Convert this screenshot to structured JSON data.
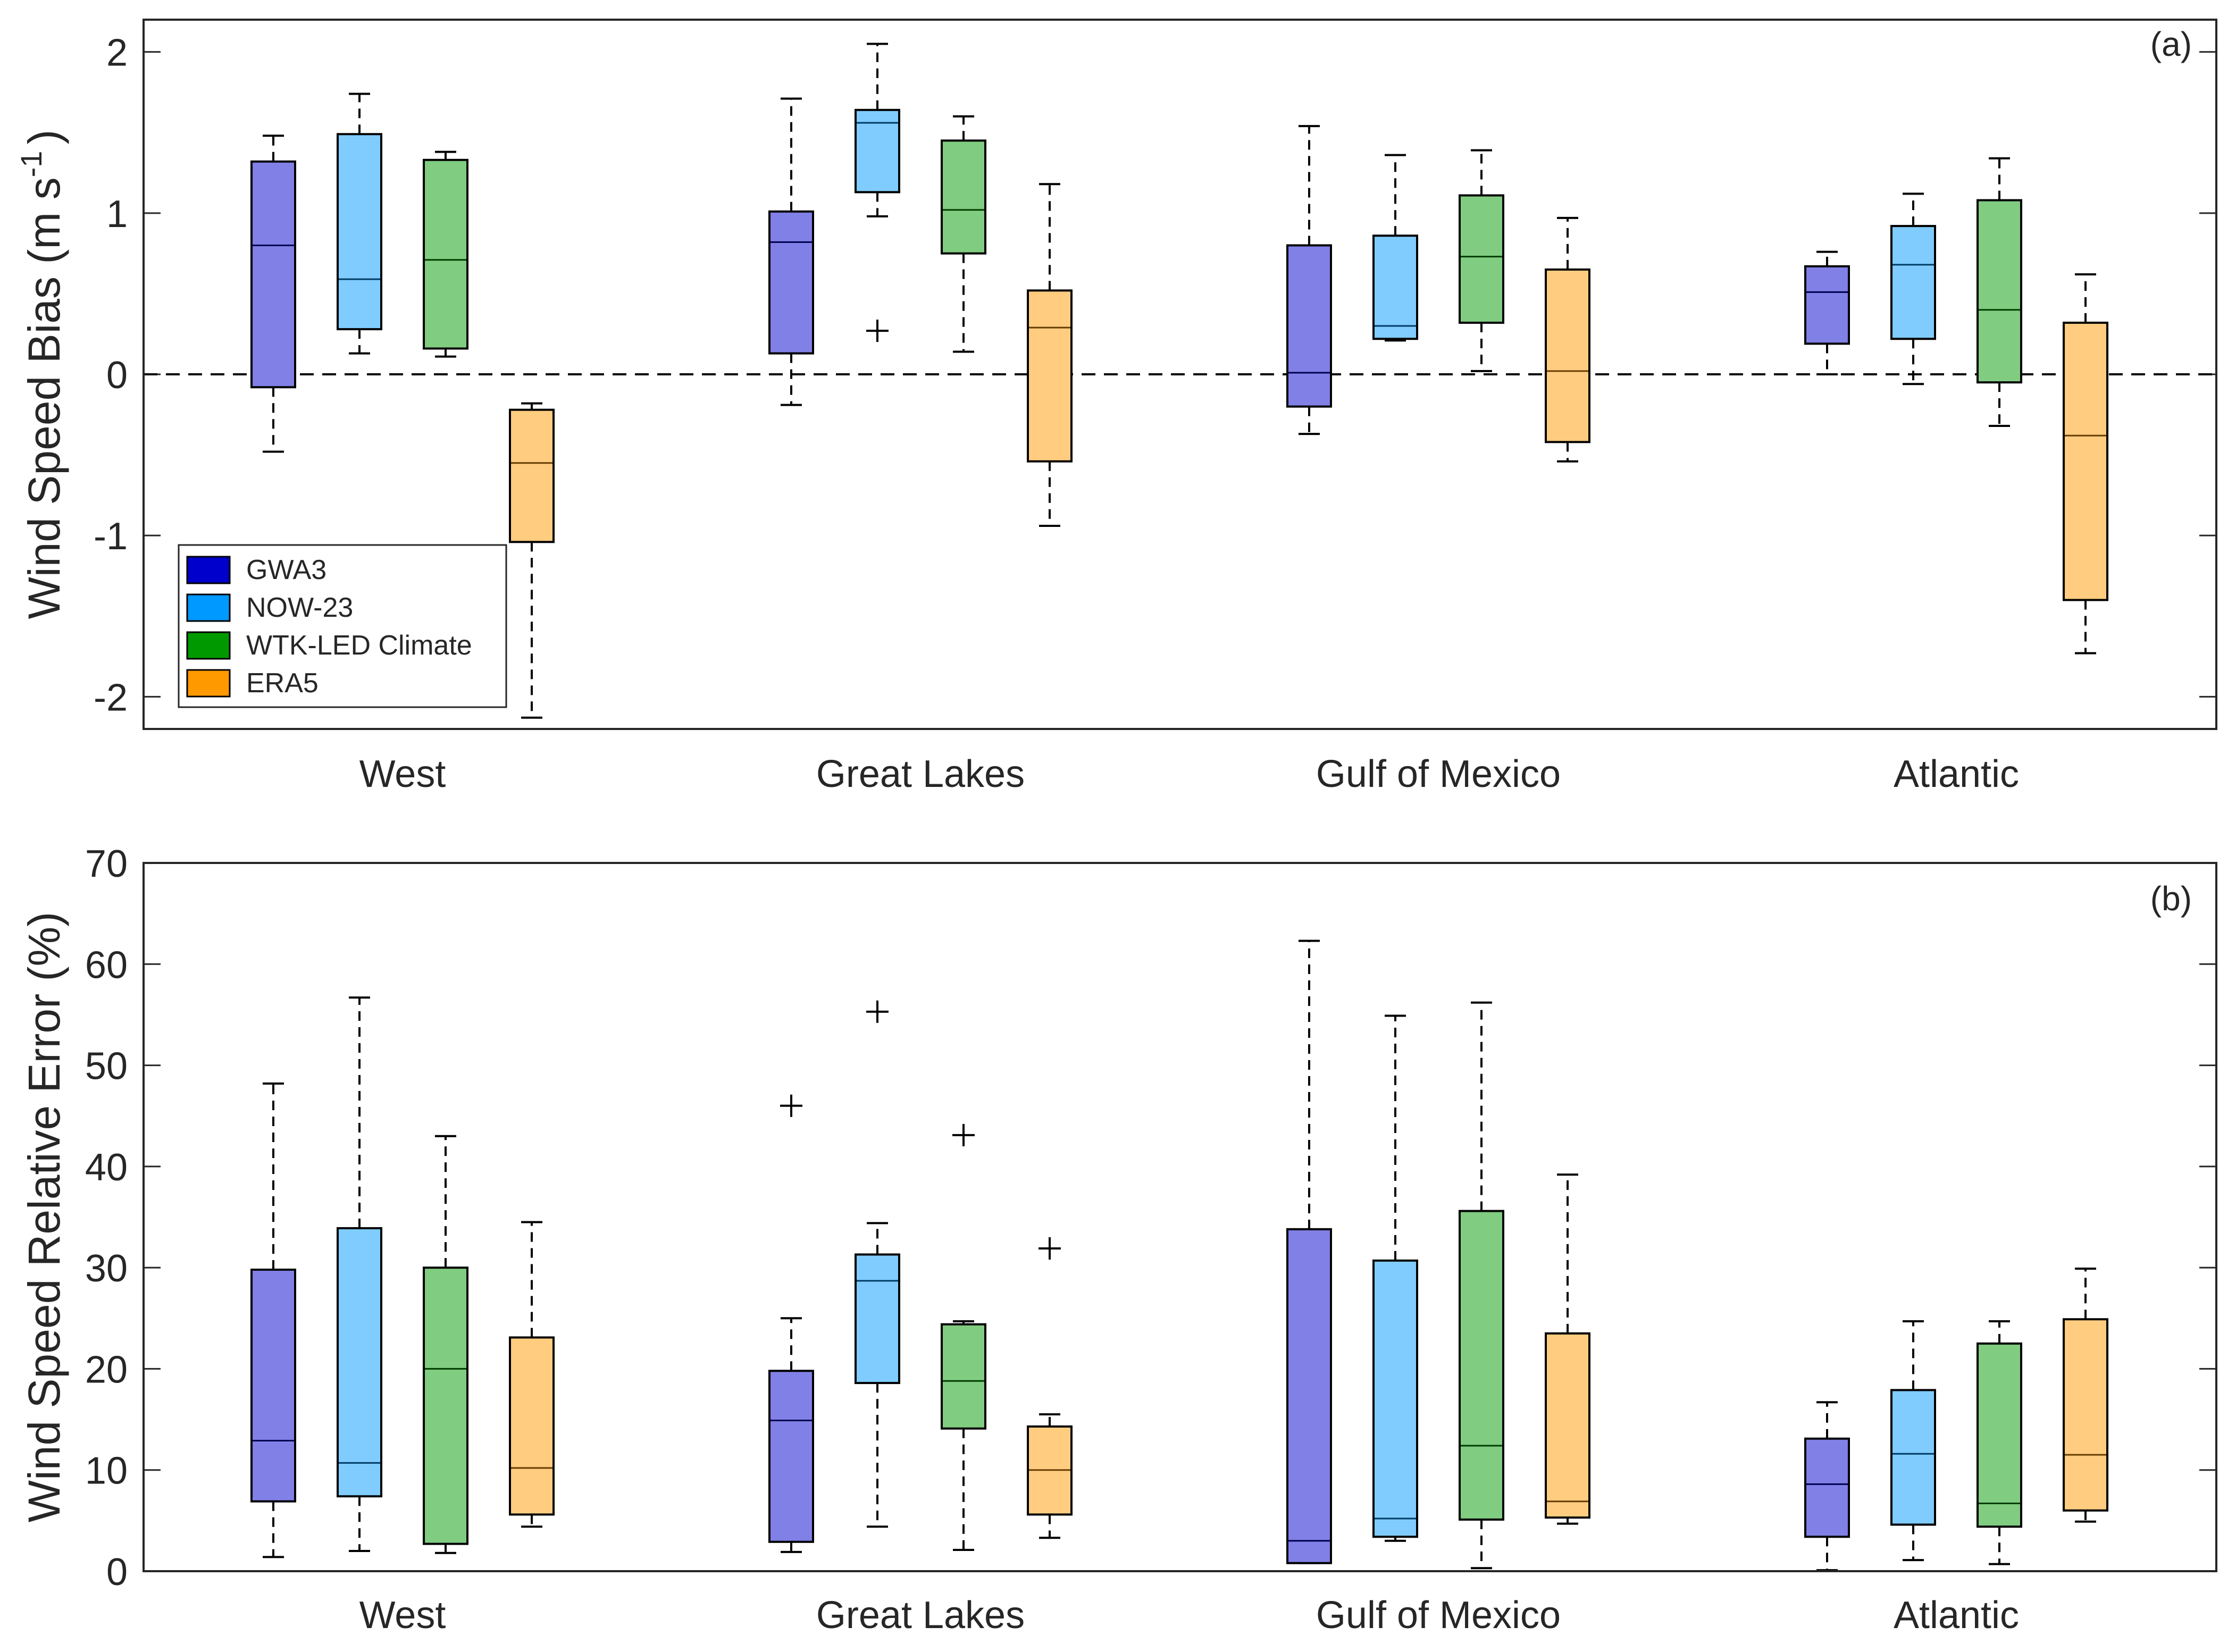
{
  "series_colors": {
    "GWA3": "#0000CC",
    "NOW-23": "#0099FF",
    "WTK-LED Climate": "#009900",
    "ERA5": "#FF9900"
  },
  "legend": [
    "GWA3",
    "NOW-23",
    "WTK-LED Climate",
    "ERA5"
  ],
  "chart_data": [
    {
      "type": "box",
      "panel_label": "(a)",
      "title": "",
      "ylabel": "Wind Speed Bias (m s^-1)",
      "ylabel_main": "Wind Speed Bias (m s",
      "ylabel_sup": "-1",
      "ylabel_end": ")",
      "xlabel": "",
      "ylim": [
        -2.2,
        2.2
      ],
      "yticks": [
        -2,
        -1,
        0,
        1,
        2
      ],
      "ytick_labels": [
        "-2",
        "-1",
        "0",
        "1",
        "2"
      ],
      "reference_line": 0,
      "legend_position": "bottom-left",
      "categories": [
        "West",
        "Great Lakes",
        "Gulf of Mexico",
        "Atlantic"
      ],
      "series": [
        {
          "name": "GWA3",
          "boxes": [
            {
              "whisker_low": -0.48,
              "q1": -0.08,
              "median": 0.8,
              "q3": 1.32,
              "whisker_high": 1.48,
              "outliers": []
            },
            {
              "whisker_low": -0.19,
              "q1": 0.13,
              "median": 0.82,
              "q3": 1.01,
              "whisker_high": 1.71,
              "outliers": []
            },
            {
              "whisker_low": -0.37,
              "q1": -0.2,
              "median": 0.01,
              "q3": 0.8,
              "whisker_high": 1.54,
              "outliers": []
            },
            {
              "whisker_low": 0.0,
              "q1": 0.19,
              "median": 0.51,
              "q3": 0.67,
              "whisker_high": 0.76,
              "outliers": []
            }
          ]
        },
        {
          "name": "NOW-23",
          "boxes": [
            {
              "whisker_low": 0.13,
              "q1": 0.28,
              "median": 0.59,
              "q3": 1.49,
              "whisker_high": 1.74,
              "outliers": []
            },
            {
              "whisker_low": 0.98,
              "q1": 1.13,
              "median": 1.56,
              "q3": 1.64,
              "whisker_high": 2.05,
              "outliers": [
                0.27
              ]
            },
            {
              "whisker_low": 0.21,
              "q1": 0.22,
              "median": 0.3,
              "q3": 0.86,
              "whisker_high": 1.36,
              "outliers": []
            },
            {
              "whisker_low": -0.06,
              "q1": 0.22,
              "median": 0.68,
              "q3": 0.92,
              "whisker_high": 1.12,
              "outliers": []
            }
          ]
        },
        {
          "name": "WTK-LED Climate",
          "boxes": [
            {
              "whisker_low": 0.11,
              "q1": 0.16,
              "median": 0.71,
              "q3": 1.33,
              "whisker_high": 1.38,
              "outliers": []
            },
            {
              "whisker_low": 0.14,
              "q1": 0.75,
              "median": 1.02,
              "q3": 1.45,
              "whisker_high": 1.6,
              "outliers": []
            },
            {
              "whisker_low": 0.02,
              "q1": 0.32,
              "median": 0.73,
              "q3": 1.11,
              "whisker_high": 1.39,
              "outliers": []
            },
            {
              "whisker_low": -0.32,
              "q1": -0.05,
              "median": 0.4,
              "q3": 1.08,
              "whisker_high": 1.34,
              "outliers": []
            }
          ]
        },
        {
          "name": "ERA5",
          "boxes": [
            {
              "whisker_low": -2.13,
              "q1": -1.04,
              "median": -0.55,
              "q3": -0.22,
              "whisker_high": -0.18,
              "outliers": []
            },
            {
              "whisker_low": -0.94,
              "q1": -0.54,
              "median": 0.29,
              "q3": 0.52,
              "whisker_high": 1.18,
              "outliers": []
            },
            {
              "whisker_low": -0.54,
              "q1": -0.42,
              "median": 0.02,
              "q3": 0.65,
              "whisker_high": 0.97,
              "outliers": []
            },
            {
              "whisker_low": -1.73,
              "q1": -1.4,
              "median": -0.38,
              "q3": 0.32,
              "whisker_high": 0.62,
              "outliers": []
            }
          ]
        }
      ]
    },
    {
      "type": "box",
      "panel_label": "(b)",
      "title": "",
      "ylabel": "Wind Speed Relative Error (%)",
      "xlabel": "",
      "ylim": [
        0,
        70
      ],
      "yticks": [
        0,
        10,
        20,
        30,
        40,
        50,
        60,
        70
      ],
      "ytick_labels": [
        "0",
        "10",
        "20",
        "30",
        "40",
        "50",
        "60",
        "70"
      ],
      "categories": [
        "West",
        "Great Lakes",
        "Gulf of Mexico",
        "Atlantic"
      ],
      "series": [
        {
          "name": "GWA3",
          "boxes": [
            {
              "whisker_low": 1.4,
              "q1": 6.9,
              "median": 12.9,
              "q3": 29.8,
              "whisker_high": 48.2,
              "outliers": []
            },
            {
              "whisker_low": 1.9,
              "q1": 2.9,
              "median": 14.9,
              "q3": 19.8,
              "whisker_high": 25.0,
              "outliers": [
                46.0
              ]
            },
            {
              "whisker_low": 0.8,
              "q1": 0.8,
              "median": 3.0,
              "q3": 33.8,
              "whisker_high": 62.3,
              "outliers": []
            },
            {
              "whisker_low": 0.1,
              "q1": 3.4,
              "median": 8.6,
              "q3": 13.1,
              "whisker_high": 16.7,
              "outliers": []
            }
          ]
        },
        {
          "name": "NOW-23",
          "boxes": [
            {
              "whisker_low": 2.0,
              "q1": 7.4,
              "median": 10.7,
              "q3": 33.9,
              "whisker_high": 56.7,
              "outliers": []
            },
            {
              "whisker_low": 4.4,
              "q1": 18.6,
              "median": 28.7,
              "q3": 31.3,
              "whisker_high": 34.4,
              "outliers": [
                55.3
              ]
            },
            {
              "whisker_low": 3.0,
              "q1": 3.4,
              "median": 5.2,
              "q3": 30.7,
              "whisker_high": 54.9,
              "outliers": []
            },
            {
              "whisker_low": 1.1,
              "q1": 4.6,
              "median": 11.6,
              "q3": 17.9,
              "whisker_high": 24.7,
              "outliers": []
            }
          ]
        },
        {
          "name": "WTK-LED Climate",
          "boxes": [
            {
              "whisker_low": 1.8,
              "q1": 2.7,
              "median": 20.0,
              "q3": 30.0,
              "whisker_high": 43.0,
              "outliers": []
            },
            {
              "whisker_low": 2.1,
              "q1": 14.1,
              "median": 18.8,
              "q3": 24.4,
              "whisker_high": 24.7,
              "outliers": [
                43.1
              ]
            },
            {
              "whisker_low": 0.3,
              "q1": 5.1,
              "median": 12.4,
              "q3": 35.6,
              "whisker_high": 56.2,
              "outliers": []
            },
            {
              "whisker_low": 0.7,
              "q1": 4.4,
              "median": 6.7,
              "q3": 22.5,
              "whisker_high": 24.7,
              "outliers": []
            }
          ]
        },
        {
          "name": "ERA5",
          "boxes": [
            {
              "whisker_low": 4.4,
              "q1": 5.6,
              "median": 10.2,
              "q3": 23.1,
              "whisker_high": 34.5,
              "outliers": []
            },
            {
              "whisker_low": 3.3,
              "q1": 5.6,
              "median": 10.0,
              "q3": 14.3,
              "whisker_high": 15.5,
              "outliers": [
                31.9
              ]
            },
            {
              "whisker_low": 4.7,
              "q1": 5.3,
              "median": 6.9,
              "q3": 23.5,
              "whisker_high": 39.2,
              "outliers": []
            },
            {
              "whisker_low": 4.9,
              "q1": 6.0,
              "median": 11.5,
              "q3": 24.9,
              "whisker_high": 29.9,
              "outliers": []
            }
          ]
        }
      ]
    }
  ]
}
